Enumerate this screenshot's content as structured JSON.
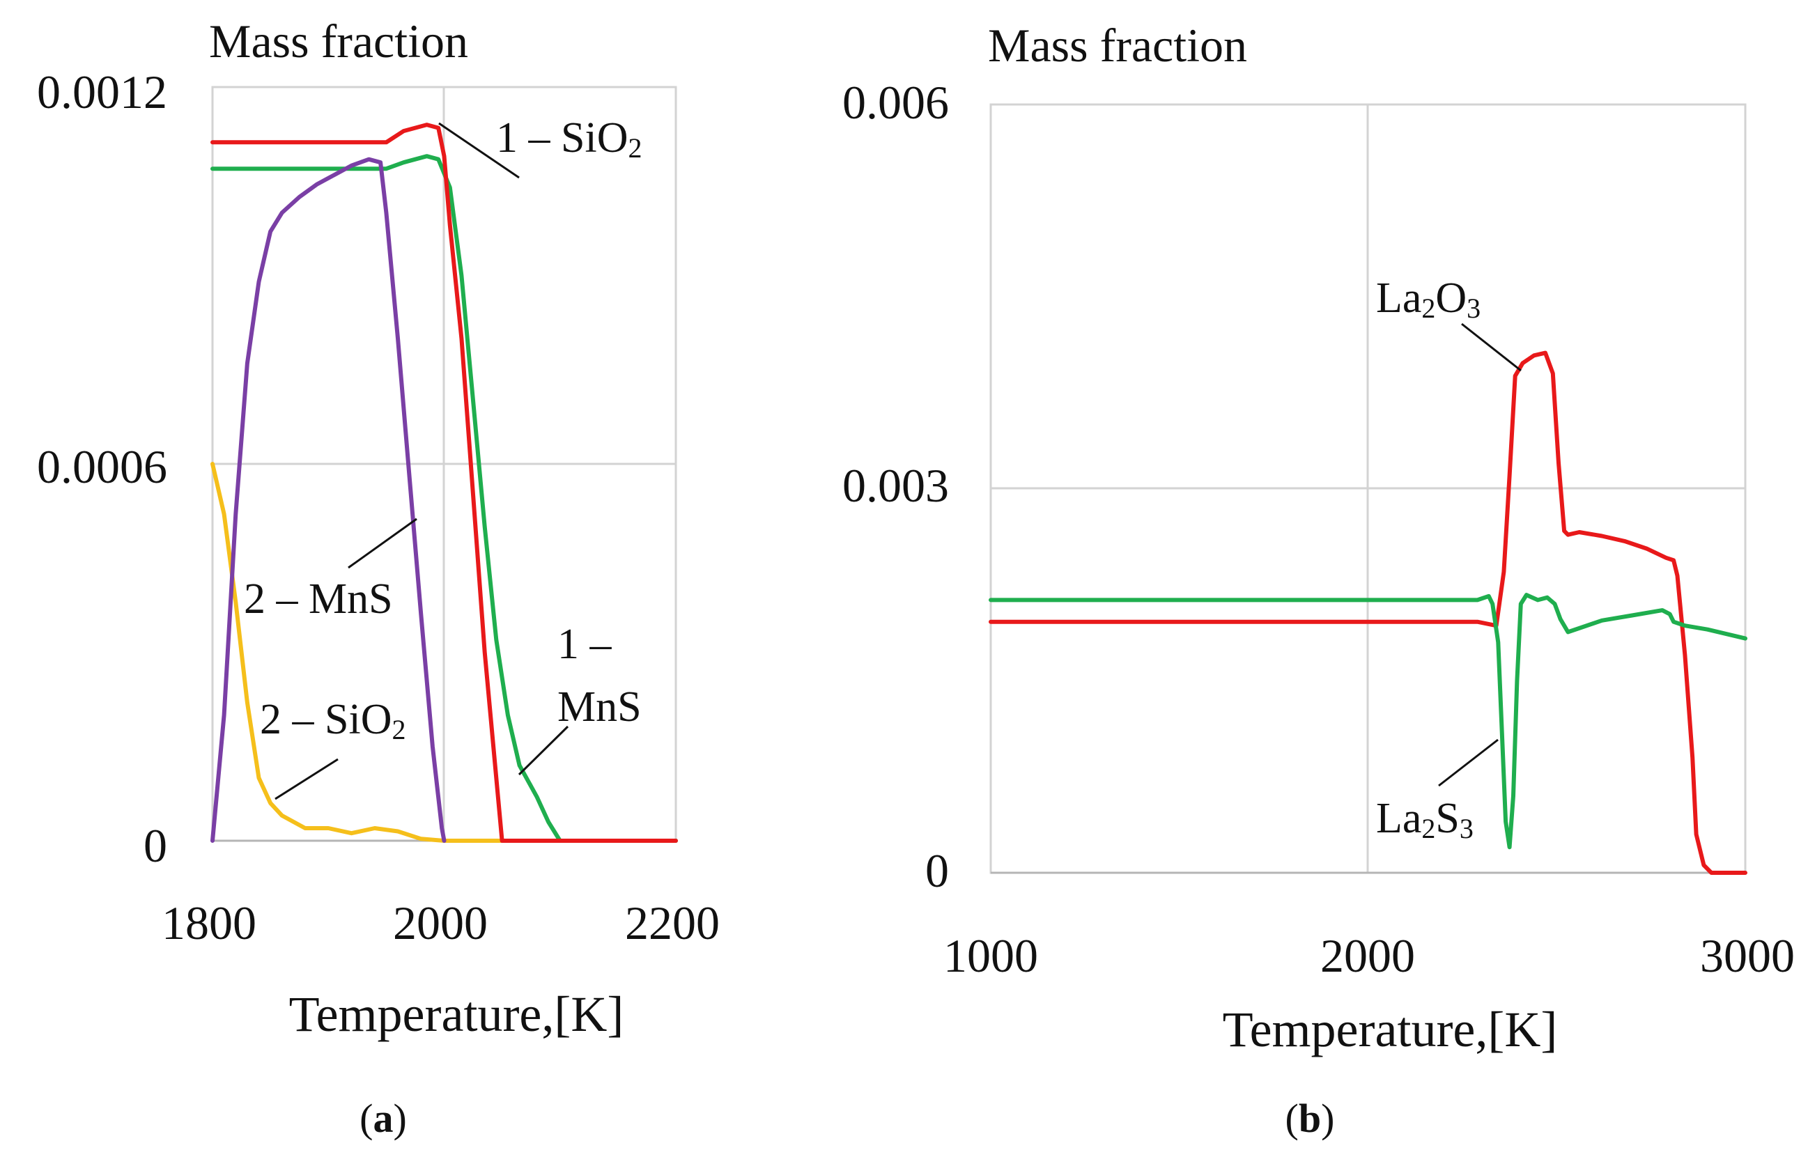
{
  "colors": {
    "red": "#e8191a",
    "green": "#1fae4e",
    "purple": "#7a3fa5",
    "yellow": "#f5bf1b",
    "grid": "#d3d3d3",
    "text": "#111111"
  },
  "chart_data": [
    {
      "type": "line",
      "caption": "a",
      "ylabel": "Mass fraction",
      "xlabel": "Temperature,[K]",
      "xlim": [
        1800,
        2200
      ],
      "ylim": [
        0,
        0.0012
      ],
      "xticks": [
        1800,
        2000,
        2200
      ],
      "xtick_labels": [
        "1800",
        "2000",
        "2200"
      ],
      "yticks": [
        0,
        0.0006,
        0.0012
      ],
      "ytick_labels": [
        "0",
        "0.0006",
        "0.0012"
      ],
      "series": [
        {
          "name": "1 – SiO2",
          "color": "red",
          "points": [
            [
              1800,
              0.001112
            ],
            [
              1950,
              0.001112
            ],
            [
              1965,
              0.00113
            ],
            [
              1985,
              0.00114
            ],
            [
              1995,
              0.001135
            ],
            [
              2000,
              0.00109
            ],
            [
              2005,
              0.00098
            ],
            [
              2015,
              0.0008
            ],
            [
              2025,
              0.00055
            ],
            [
              2035,
              0.0003
            ],
            [
              2045,
              0.0001
            ],
            [
              2050,
              0.0
            ],
            [
              2200,
              0.0
            ]
          ]
        },
        {
          "name": "1 – MnS",
          "color": "green",
          "points": [
            [
              1800,
              0.00107
            ],
            [
              1950,
              0.00107
            ],
            [
              1965,
              0.00108
            ],
            [
              1985,
              0.00109
            ],
            [
              1995,
              0.001085
            ],
            [
              2005,
              0.00104
            ],
            [
              2015,
              0.0009
            ],
            [
              2025,
              0.0007
            ],
            [
              2035,
              0.0005
            ],
            [
              2045,
              0.00032
            ],
            [
              2055,
              0.0002
            ],
            [
              2065,
              0.00012
            ],
            [
              2080,
              7e-05
            ],
            [
              2090,
              3e-05
            ],
            [
              2100,
              0.0
            ],
            [
              2200,
              0.0
            ]
          ]
        },
        {
          "name": "2 – MnS",
          "color": "purple",
          "points": [
            [
              1800,
              0.0
            ],
            [
              1810,
              0.0002
            ],
            [
              1820,
              0.00052
            ],
            [
              1830,
              0.00076
            ],
            [
              1840,
              0.00089
            ],
            [
              1850,
              0.00097
            ],
            [
              1860,
              0.001
            ],
            [
              1875,
              0.001025
            ],
            [
              1890,
              0.001045
            ],
            [
              1905,
              0.00106
            ],
            [
              1920,
              0.001075
            ],
            [
              1935,
              0.001085
            ],
            [
              1945,
              0.00108
            ],
            [
              1950,
              0.001
            ],
            [
              1960,
              0.0008
            ],
            [
              1970,
              0.00058
            ],
            [
              1980,
              0.00036
            ],
            [
              1990,
              0.00015
            ],
            [
              1998,
              2e-05
            ],
            [
              2000,
              0.0
            ]
          ]
        },
        {
          "name": "2 – SiO2",
          "color": "yellow",
          "points": [
            [
              1800,
              0.0006
            ],
            [
              1810,
              0.00052
            ],
            [
              1820,
              0.00038
            ],
            [
              1830,
              0.00022
            ],
            [
              1840,
              0.0001
            ],
            [
              1850,
              6e-05
            ],
            [
              1860,
              4e-05
            ],
            [
              1880,
              2e-05
            ],
            [
              1900,
              2e-05
            ],
            [
              1920,
              1.2e-05
            ],
            [
              1940,
              2e-05
            ],
            [
              1960,
              1.5e-05
            ],
            [
              1980,
              3e-06
            ],
            [
              2000,
              0.0
            ],
            [
              2200,
              0.0
            ]
          ]
        }
      ],
      "annotations": [
        {
          "text": "1 – SiO",
          "sub": "2",
          "series": "1 – SiO2"
        },
        {
          "text": "2 – MnS",
          "series": "2 – MnS"
        },
        {
          "text": "1 –",
          "text2": "MnS",
          "series": "1 – MnS"
        },
        {
          "text": "2 – SiO",
          "sub": "2",
          "series": "2 – SiO2"
        }
      ]
    },
    {
      "type": "line",
      "caption": "b",
      "ylabel": "Mass fraction",
      "xlabel": "Temperature,[K]",
      "xlim": [
        1000,
        3000
      ],
      "ylim": [
        0,
        0.006
      ],
      "xticks": [
        1000,
        2000,
        3000
      ],
      "xtick_labels": [
        "1000",
        "2000",
        "3000"
      ],
      "yticks": [
        0,
        0.003,
        0.006
      ],
      "ytick_labels": [
        "0",
        "0.003",
        "0.006"
      ],
      "series": [
        {
          "name": "La2O3",
          "color": "red",
          "points": [
            [
              1000,
              0.00196
            ],
            [
              2290,
              0.00196
            ],
            [
              2340,
              0.00193
            ],
            [
              2360,
              0.00235
            ],
            [
              2375,
              0.0031
            ],
            [
              2390,
              0.00388
            ],
            [
              2410,
              0.00398
            ],
            [
              2440,
              0.00404
            ],
            [
              2470,
              0.00406
            ],
            [
              2490,
              0.0039
            ],
            [
              2505,
              0.0032
            ],
            [
              2520,
              0.00267
            ],
            [
              2530,
              0.00264
            ],
            [
              2560,
              0.00266
            ],
            [
              2620,
              0.00263
            ],
            [
              2680,
              0.00259
            ],
            [
              2740,
              0.00253
            ],
            [
              2790,
              0.00246
            ],
            [
              2810,
              0.00244
            ],
            [
              2820,
              0.00232
            ],
            [
              2840,
              0.0017
            ],
            [
              2860,
              0.0009
            ],
            [
              2870,
              0.0003
            ],
            [
              2890,
              6e-05
            ],
            [
              2910,
              0.0
            ],
            [
              3000,
              0.0
            ]
          ]
        },
        {
          "name": "La2S3",
          "color": "green",
          "points": [
            [
              1000,
              0.00213
            ],
            [
              2290,
              0.00213
            ],
            [
              2320,
              0.00216
            ],
            [
              2330,
              0.0021
            ],
            [
              2345,
              0.0018
            ],
            [
              2355,
              0.0011
            ],
            [
              2365,
              0.0004
            ],
            [
              2375,
              0.0002
            ],
            [
              2385,
              0.0006
            ],
            [
              2395,
              0.0015
            ],
            [
              2405,
              0.0021
            ],
            [
              2420,
              0.00217
            ],
            [
              2450,
              0.00213
            ],
            [
              2475,
              0.00215
            ],
            [
              2495,
              0.0021
            ],
            [
              2510,
              0.00198
            ],
            [
              2530,
              0.00188
            ],
            [
              2560,
              0.00191
            ],
            [
              2620,
              0.00197
            ],
            [
              2700,
              0.00201
            ],
            [
              2780,
              0.00205
            ],
            [
              2800,
              0.00202
            ],
            [
              2810,
              0.00196
            ],
            [
              2840,
              0.00193
            ],
            [
              2900,
              0.0019
            ],
            [
              3000,
              0.00183
            ]
          ]
        }
      ],
      "annotations": [
        {
          "text": "La",
          "sub": "2",
          "text2": "O",
          "sub2": "3",
          "series": "La2O3"
        },
        {
          "text": "La",
          "sub": "2",
          "text2": "S",
          "sub2": "3",
          "series": "La2S3"
        }
      ]
    }
  ]
}
